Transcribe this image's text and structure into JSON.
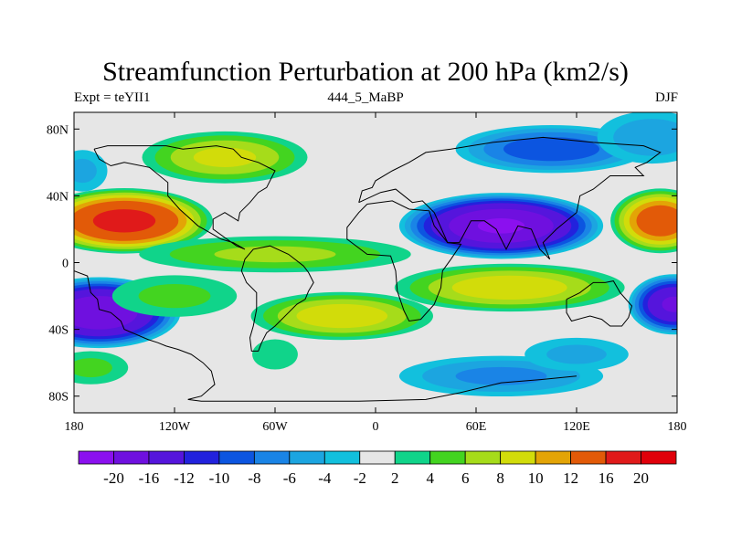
{
  "title": "Streamfunction Perturbation at 200 hPa (km2/s)",
  "subtitle_left": "Expt = teYII1",
  "subtitle_center": "444_5_MaBP",
  "subtitle_right": "DJF",
  "map": {
    "lon_range": [
      -180,
      180
    ],
    "lat_range": [
      -90,
      90
    ],
    "x_ticks": [
      {
        "lon": -180,
        "label": "180"
      },
      {
        "lon": -120,
        "label": "120W"
      },
      {
        "lon": -60,
        "label": "60W"
      },
      {
        "lon": 0,
        "label": "0"
      },
      {
        "lon": 60,
        "label": "60E"
      },
      {
        "lon": 120,
        "label": "120E"
      },
      {
        "lon": 180,
        "label": "180"
      }
    ],
    "y_ticks": [
      {
        "lat": 80,
        "label": "80N"
      },
      {
        "lat": 40,
        "label": "40N"
      },
      {
        "lat": 0,
        "label": "0"
      },
      {
        "lat": -40,
        "label": "40S"
      },
      {
        "lat": -80,
        "label": "80S"
      }
    ],
    "field_features": [
      {
        "lon": -150,
        "lat": 25,
        "value": 17,
        "sx": 35,
        "sy": 13
      },
      {
        "lon": 170,
        "lat": 25,
        "value": 14,
        "sx": 20,
        "sy": 13
      },
      {
        "lon": 75,
        "lat": 22,
        "value": -20,
        "sx": 40,
        "sy": 13
      },
      {
        "lon": -165,
        "lat": -30,
        "value": -19,
        "sx": 32,
        "sy": 14
      },
      {
        "lon": 178,
        "lat": -25,
        "value": -16,
        "sx": 18,
        "sy": 12
      },
      {
        "lon": 105,
        "lat": 68,
        "value": -9,
        "sx": 40,
        "sy": 10
      },
      {
        "lon": 165,
        "lat": 75,
        "value": -5,
        "sx": 25,
        "sy": 12
      },
      {
        "lon": -90,
        "lat": 63,
        "value": 8,
        "sx": 35,
        "sy": 11
      },
      {
        "lon": -60,
        "lat": 5,
        "value": 6,
        "sx": 60,
        "sy": 8
      },
      {
        "lon": 80,
        "lat": -15,
        "value": 9,
        "sx": 48,
        "sy": 10
      },
      {
        "lon": -20,
        "lat": -32,
        "value": 9,
        "sx": 38,
        "sy": 10
      },
      {
        "lon": 75,
        "lat": -68,
        "value": -6,
        "sx": 45,
        "sy": 9
      },
      {
        "lon": 120,
        "lat": -55,
        "value": -4,
        "sx": 25,
        "sy": 8
      },
      {
        "lon": -170,
        "lat": -63,
        "value": 4,
        "sx": 18,
        "sy": 8
      },
      {
        "lon": -60,
        "lat": -55,
        "value": 3,
        "sx": 12,
        "sy": 8
      },
      {
        "lon": -175,
        "lat": 55,
        "value": -4,
        "sx": 12,
        "sy": 10
      },
      {
        "lon": -120,
        "lat": -20,
        "value": 4,
        "sx": 30,
        "sy": 10
      }
    ],
    "coastlines": [
      [
        [
          -180,
          -5
        ],
        [
          -172,
          -8
        ],
        [
          -170,
          -18
        ],
        [
          -166,
          -22
        ],
        [
          -165,
          -28
        ],
        [
          -158,
          -30
        ],
        [
          -152,
          -35
        ],
        [
          -150,
          -40
        ],
        [
          -143,
          -43
        ],
        [
          -136,
          -46
        ],
        [
          -130,
          -48
        ],
        [
          -125,
          -50
        ],
        [
          -118,
          -52
        ],
        [
          -110,
          -55
        ],
        [
          -103,
          -60
        ],
        [
          -98,
          -65
        ],
        [
          -96,
          -73
        ],
        [
          -104,
          -80
        ],
        [
          -112,
          -82
        ],
        [
          -104,
          -83
        ],
        [
          -50,
          -83
        ],
        [
          -10,
          -83
        ],
        [
          30,
          -82
        ],
        [
          50,
          -78
        ],
        [
          75,
          -72
        ],
        [
          100,
          -70
        ],
        [
          120,
          -68
        ]
      ],
      [
        [
          -43,
          -2
        ],
        [
          -40,
          -6
        ],
        [
          -37,
          -12
        ],
        [
          -40,
          -17
        ],
        [
          -42,
          -22
        ],
        [
          -47,
          -25
        ],
        [
          -50,
          -28
        ],
        [
          -55,
          -33
        ],
        [
          -57,
          -35
        ],
        [
          -60,
          -38
        ],
        [
          -65,
          -42
        ],
        [
          -68,
          -48
        ],
        [
          -70,
          -53
        ],
        [
          -74,
          -53
        ],
        [
          -75,
          -45
        ],
        [
          -73,
          -38
        ],
        [
          -71,
          -28
        ],
        [
          -71,
          -18
        ],
        [
          -77,
          -12
        ],
        [
          -80,
          -5
        ],
        [
          -78,
          2
        ],
        [
          -73,
          8
        ],
        [
          -63,
          10
        ],
        [
          -52,
          5
        ],
        [
          -43,
          -2
        ]
      ],
      [
        [
          -5,
          35
        ],
        [
          10,
          37
        ],
        [
          20,
          32
        ],
        [
          32,
          31
        ],
        [
          35,
          22
        ],
        [
          43,
          12
        ],
        [
          51,
          11
        ],
        [
          45,
          2
        ],
        [
          40,
          -5
        ],
        [
          39,
          -15
        ],
        [
          35,
          -25
        ],
        [
          27,
          -34
        ],
        [
          20,
          -35
        ],
        [
          17,
          -29
        ],
        [
          13,
          -17
        ],
        [
          12,
          -5
        ],
        [
          9,
          4
        ],
        [
          -5,
          5
        ],
        [
          -17,
          14
        ],
        [
          -17,
          21
        ],
        [
          -10,
          30
        ],
        [
          -5,
          35
        ]
      ],
      [
        [
          -10,
          36
        ],
        [
          -8,
          43
        ],
        [
          -2,
          45
        ],
        [
          0,
          49
        ],
        [
          10,
          55
        ],
        [
          20,
          60
        ],
        [
          30,
          66
        ],
        [
          45,
          68
        ],
        [
          70,
          72
        ],
        [
          100,
          75
        ],
        [
          130,
          72
        ],
        [
          160,
          70
        ],
        [
          170,
          66
        ],
        [
          162,
          60
        ],
        [
          155,
          57
        ],
        [
          160,
          52
        ],
        [
          140,
          52
        ],
        [
          130,
          44
        ],
        [
          122,
          40
        ],
        [
          120,
          30
        ],
        [
          108,
          20
        ],
        [
          100,
          12
        ],
        [
          104,
          2
        ],
        [
          98,
          8
        ],
        [
          93,
          20
        ],
        [
          85,
          22
        ],
        [
          78,
          8
        ],
        [
          72,
          20
        ],
        [
          65,
          25
        ],
        [
          57,
          25
        ],
        [
          50,
          12
        ],
        [
          43,
          12
        ],
        [
          35,
          30
        ],
        [
          28,
          37
        ],
        [
          22,
          36
        ],
        [
          12,
          44
        ],
        [
          3,
          42
        ],
        [
          -10,
          36
        ]
      ],
      [
        [
          114,
          -22
        ],
        [
          122,
          -18
        ],
        [
          130,
          -12
        ],
        [
          137,
          -12
        ],
        [
          142,
          -11
        ],
        [
          146,
          -18
        ],
        [
          153,
          -26
        ],
        [
          151,
          -33
        ],
        [
          147,
          -38
        ],
        [
          140,
          -38
        ],
        [
          135,
          -34
        ],
        [
          128,
          -32
        ],
        [
          117,
          -35
        ],
        [
          114,
          -30
        ],
        [
          114,
          -22
        ]
      ],
      [
        [
          -168,
          68
        ],
        [
          -160,
          70
        ],
        [
          -140,
          70
        ],
        [
          -125,
          70
        ],
        [
          -115,
          68
        ],
        [
          -95,
          70
        ],
        [
          -85,
          68
        ],
        [
          -80,
          63
        ],
        [
          -70,
          60
        ],
        [
          -60,
          55
        ],
        [
          -65,
          45
        ],
        [
          -70,
          42
        ],
        [
          -75,
          36
        ],
        [
          -81,
          30
        ],
        [
          -82,
          25
        ],
        [
          -90,
          30
        ],
        [
          -97,
          26
        ],
        [
          -97,
          20
        ],
        [
          -90,
          15
        ],
        [
          -83,
          10
        ],
        [
          -78,
          8
        ],
        [
          -85,
          12
        ],
        [
          -92,
          14
        ],
        [
          -106,
          22
        ],
        [
          -117,
          32
        ],
        [
          -124,
          40
        ],
        [
          -124,
          48
        ],
        [
          -135,
          57
        ],
        [
          -150,
          60
        ],
        [
          -158,
          58
        ],
        [
          -165,
          62
        ],
        [
          -168,
          68
        ]
      ]
    ]
  },
  "colorbar": {
    "labels": [
      "-20",
      "-16",
      "-12",
      "-10",
      "-8",
      "-6",
      "-4",
      "-2",
      "2",
      "4",
      "6",
      "8",
      "10",
      "12",
      "16",
      "20"
    ],
    "colors": [
      "#8b10ef",
      "#6f10df",
      "#5515dc",
      "#2222dd",
      "#0c55e0",
      "#1a84e6",
      "#1ca5e0",
      "#12c0dd",
      "#e6e6e6",
      "#10d48a",
      "#43d420",
      "#a6dc1a",
      "#d2dc0a",
      "#e3a406",
      "#e25a08",
      "#e01a1a",
      "#e0000a"
    ]
  }
}
